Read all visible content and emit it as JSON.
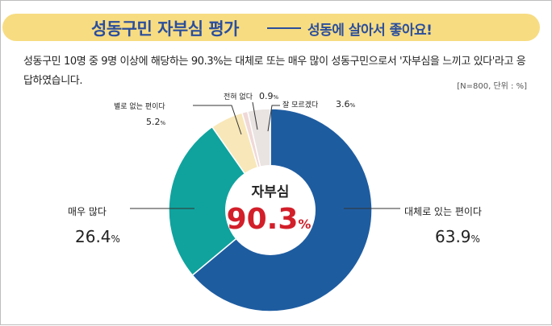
{
  "header": {
    "title": "성동구민 자부심 평가",
    "subtitle": "성동에 살아서 좋아요!"
  },
  "description": "성동구민 10명 중 9명 이상에 해당하는 90.3%는 대체로 또는 매우 많이 성동구민으로서 '자부심을 느끼고 있다'라고 응답하였습니다.",
  "unit_note": "[N=800, 단위 : %]",
  "center": {
    "label": "자부심",
    "value": "90.3",
    "unit": "%"
  },
  "colors": {
    "accent_blue": "#1e5ca0",
    "teal": "#10a39e",
    "cream": "#f8e7b8",
    "pink": "#efd8d6",
    "light": "#e9e3e2",
    "red": "#d21f2a",
    "banner": "#f7dc82"
  },
  "chart_data": {
    "type": "pie",
    "donut": true,
    "title": "",
    "slices": [
      {
        "label": "대체로 있는 편이다",
        "value": 63.9,
        "display": "63.9",
        "color": "#1e5ca0"
      },
      {
        "label": "매우 많다",
        "value": 26.4,
        "display": "26.4",
        "color": "#10a39e"
      },
      {
        "label": "별로 없는 편이다",
        "value": 5.2,
        "display": "5.2",
        "color": "#f8e7b8"
      },
      {
        "label": "전혀 없다",
        "value": 0.9,
        "display": "0.9",
        "color": "#efd8d6"
      },
      {
        "label": "잘 모르겠다",
        "value": 3.6,
        "display": "3.6",
        "color": "#e9e3e2"
      }
    ],
    "value_unit": "%"
  }
}
